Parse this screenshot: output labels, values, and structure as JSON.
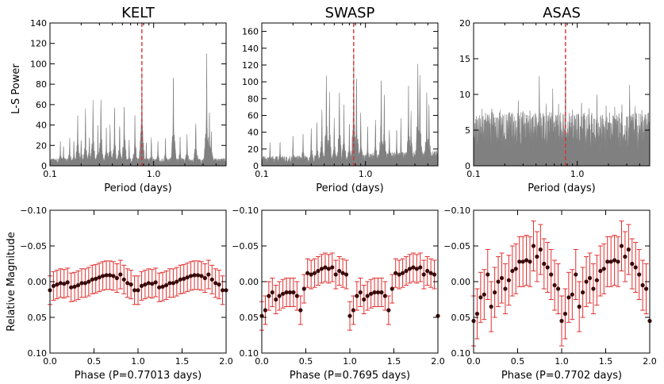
{
  "figure": {
    "ylabel_top": "L-S Power",
    "ylabel_bottom": "Relative Magnitude"
  },
  "chart_data": [
    {
      "id": "kelt-periodogram",
      "type": "area",
      "title": "KELT",
      "xlabel": "Period (days)",
      "ylabel": "L-S Power",
      "xscale": "log",
      "xlim": [
        0.1,
        5.0
      ],
      "ylim": [
        0,
        140
      ],
      "xticks": [
        0.1,
        1.0
      ],
      "xtick_labels": [
        "0.1",
        "1.0"
      ],
      "yticks": [
        0,
        20,
        40,
        60,
        80,
        100,
        120,
        140
      ],
      "fill_color": "#808080",
      "marker_period": 0.77013,
      "marker_color": "#e03030",
      "baseline": 6,
      "peaks": [
        {
          "x": 0.126,
          "y": 25
        },
        {
          "x": 0.135,
          "y": 22
        },
        {
          "x": 0.155,
          "y": 30
        },
        {
          "x": 0.17,
          "y": 28
        },
        {
          "x": 0.185,
          "y": 53
        },
        {
          "x": 0.2,
          "y": 30
        },
        {
          "x": 0.22,
          "y": 58
        },
        {
          "x": 0.24,
          "y": 32
        },
        {
          "x": 0.26,
          "y": 68
        },
        {
          "x": 0.29,
          "y": 40
        },
        {
          "x": 0.31,
          "y": 74
        },
        {
          "x": 0.35,
          "y": 38
        },
        {
          "x": 0.38,
          "y": 42
        },
        {
          "x": 0.42,
          "y": 60
        },
        {
          "x": 0.47,
          "y": 45
        },
        {
          "x": 0.52,
          "y": 68
        },
        {
          "x": 0.58,
          "y": 28
        },
        {
          "x": 0.66,
          "y": 55
        },
        {
          "x": 0.77,
          "y": 107
        },
        {
          "x": 0.85,
          "y": 25
        },
        {
          "x": 0.95,
          "y": 30
        },
        {
          "x": 1.1,
          "y": 25
        },
        {
          "x": 1.3,
          "y": 28
        },
        {
          "x": 1.55,
          "y": 100
        },
        {
          "x": 1.8,
          "y": 30
        },
        {
          "x": 2.1,
          "y": 32
        },
        {
          "x": 2.55,
          "y": 48
        },
        {
          "x": 3.25,
          "y": 115
        },
        {
          "x": 3.45,
          "y": 55
        },
        {
          "x": 3.6,
          "y": 40
        }
      ]
    },
    {
      "id": "swasp-periodogram",
      "type": "area",
      "title": "SWASP",
      "xlabel": "Period (days)",
      "xscale": "log",
      "xlim": [
        0.1,
        5.0
      ],
      "ylim": [
        0,
        170
      ],
      "xticks": [
        0.1,
        1.0
      ],
      "xtick_labels": [
        "0.1",
        "1.0"
      ],
      "yticks": [
        0,
        20,
        40,
        60,
        80,
        100,
        120,
        140,
        160
      ],
      "fill_color": "#808080",
      "marker_period": 0.7695,
      "marker_color": "#e03030",
      "baseline": 10,
      "peaks": [
        {
          "x": 0.12,
          "y": 28
        },
        {
          "x": 0.15,
          "y": 32
        },
        {
          "x": 0.2,
          "y": 38
        },
        {
          "x": 0.25,
          "y": 42
        },
        {
          "x": 0.3,
          "y": 52
        },
        {
          "x": 0.34,
          "y": 60
        },
        {
          "x": 0.38,
          "y": 75
        },
        {
          "x": 0.42,
          "y": 117
        },
        {
          "x": 0.45,
          "y": 90
        },
        {
          "x": 0.5,
          "y": 60
        },
        {
          "x": 0.56,
          "y": 100
        },
        {
          "x": 0.62,
          "y": 75
        },
        {
          "x": 0.7,
          "y": 55
        },
        {
          "x": 0.77,
          "y": 150
        },
        {
          "x": 0.82,
          "y": 120
        },
        {
          "x": 0.9,
          "y": 70
        },
        {
          "x": 1.05,
          "y": 50
        },
        {
          "x": 1.25,
          "y": 60
        },
        {
          "x": 1.42,
          "y": 118
        },
        {
          "x": 1.52,
          "y": 95
        },
        {
          "x": 1.7,
          "y": 50
        },
        {
          "x": 2.0,
          "y": 45
        },
        {
          "x": 2.2,
          "y": 60
        },
        {
          "x": 2.6,
          "y": 100
        },
        {
          "x": 2.75,
          "y": 70
        },
        {
          "x": 3.2,
          "y": 135
        },
        {
          "x": 3.35,
          "y": 120
        },
        {
          "x": 3.9,
          "y": 100
        },
        {
          "x": 4.1,
          "y": 80
        }
      ]
    },
    {
      "id": "asas-periodogram",
      "type": "area",
      "title": "ASAS",
      "xlabel": "Period (days)",
      "xscale": "log",
      "xlim": [
        0.1,
        5.0
      ],
      "ylim": [
        0,
        20
      ],
      "xticks": [
        0.1,
        1.0
      ],
      "xtick_labels": [
        "0.1",
        "1.0"
      ],
      "yticks": [
        0,
        5,
        10,
        15,
        20
      ],
      "fill_color": "#808080",
      "marker_period": 0.7702,
      "marker_color": "#e03030",
      "baseline": 6,
      "peaks": [
        {
          "x": 0.12,
          "y": 8
        },
        {
          "x": 0.15,
          "y": 9
        },
        {
          "x": 0.18,
          "y": 8
        },
        {
          "x": 0.22,
          "y": 9
        },
        {
          "x": 0.27,
          "y": 11
        },
        {
          "x": 0.3,
          "y": 9
        },
        {
          "x": 0.35,
          "y": 9
        },
        {
          "x": 0.43,
          "y": 14.5
        },
        {
          "x": 0.5,
          "y": 10
        },
        {
          "x": 0.58,
          "y": 12
        },
        {
          "x": 0.66,
          "y": 9
        },
        {
          "x": 0.77,
          "y": 15.5
        },
        {
          "x": 0.9,
          "y": 9
        },
        {
          "x": 1.1,
          "y": 10
        },
        {
          "x": 1.3,
          "y": 9
        },
        {
          "x": 1.55,
          "y": 11
        },
        {
          "x": 1.9,
          "y": 9
        },
        {
          "x": 2.3,
          "y": 9
        },
        {
          "x": 2.7,
          "y": 9
        },
        {
          "x": 3.2,
          "y": 13
        },
        {
          "x": 3.6,
          "y": 9
        },
        {
          "x": 4.2,
          "y": 8
        }
      ]
    },
    {
      "id": "kelt-phased",
      "type": "scatter",
      "xlabel": "Phase (P=0.77013 days)",
      "ylabel": "Relative Magnitude",
      "xlim": [
        0.0,
        2.0
      ],
      "ylim": [
        0.1,
        -0.1
      ],
      "xticks": [
        0.0,
        0.5,
        1.0,
        1.5,
        2.0
      ],
      "xtick_labels": [
        "0.0",
        "0.5",
        "1.0",
        "1.5",
        "2.0"
      ],
      "yticks": [
        -0.1,
        -0.05,
        0.0,
        0.05,
        0.1
      ],
      "ytick_labels": [
        "−0.10",
        "−0.05",
        "0.00",
        "0.05",
        "0.10"
      ],
      "point_color": "#3a0a0a",
      "error_color": "#e03030",
      "error": 0.02,
      "phase": [
        0.0,
        0.04,
        0.08,
        0.12,
        0.16,
        0.2,
        0.24,
        0.28,
        0.32,
        0.36,
        0.4,
        0.44,
        0.48,
        0.52,
        0.56,
        0.6,
        0.64,
        0.68,
        0.72,
        0.76,
        0.8,
        0.84,
        0.88,
        0.92,
        0.96
      ],
      "mag": [
        0.012,
        0.006,
        0.004,
        0.002,
        0.003,
        0.001,
        0.008,
        0.007,
        0.005,
        0.002,
        0.002,
        0.0,
        -0.003,
        -0.004,
        -0.006,
        -0.008,
        -0.009,
        -0.009,
        -0.008,
        -0.005,
        -0.01,
        -0.003,
        0.002,
        0.004,
        0.012
      ]
    },
    {
      "id": "swasp-phased",
      "type": "scatter",
      "xlabel": "Phase (P=0.7695 days)",
      "xlim": [
        0.0,
        2.0
      ],
      "ylim": [
        0.1,
        -0.1
      ],
      "xticks": [
        0.0,
        0.5,
        1.0,
        1.5,
        2.0
      ],
      "xtick_labels": [
        "0.0",
        "0.5",
        "1.0",
        "1.5",
        "2.0"
      ],
      "yticks": [
        -0.1,
        -0.05,
        0.0,
        0.05,
        0.1
      ],
      "ytick_labels": [
        "−0.10",
        "−0.05",
        "0.00",
        "0.05",
        "0.10"
      ],
      "point_color": "#3a0a0a",
      "error_color": "#e03030",
      "error": 0.02,
      "phase": [
        0.0,
        0.04,
        0.08,
        0.12,
        0.16,
        0.2,
        0.24,
        0.28,
        0.32,
        0.36,
        0.4,
        0.44,
        0.48,
        0.52,
        0.56,
        0.6,
        0.64,
        0.68,
        0.72,
        0.76,
        0.8,
        0.84,
        0.88,
        0.92,
        0.96
      ],
      "mag": [
        0.048,
        0.04,
        0.02,
        0.015,
        0.025,
        0.02,
        0.017,
        0.015,
        0.015,
        0.015,
        0.02,
        0.04,
        0.01,
        -0.012,
        -0.01,
        -0.012,
        -0.015,
        -0.018,
        -0.02,
        -0.018,
        -0.02,
        -0.01,
        -0.015,
        -0.012,
        -0.01
      ]
    },
    {
      "id": "asas-phased",
      "type": "scatter",
      "xlabel": "Phase (P=0.7702 days)",
      "xlim": [
        0.0,
        2.0
      ],
      "ylim": [
        0.1,
        -0.1
      ],
      "xticks": [
        0.0,
        0.5,
        1.0,
        1.5,
        2.0
      ],
      "xtick_labels": [
        "0.0",
        "0.5",
        "1.0",
        "1.5",
        "2.0"
      ],
      "yticks": [
        -0.1,
        -0.05,
        0.0,
        0.05,
        0.1
      ],
      "ytick_labels": [
        "−0.10",
        "−0.05",
        "0.00",
        "0.05",
        "0.10"
      ],
      "point_color": "#3a0a0a",
      "error_color": "#e03030",
      "error": 0.035,
      "phase": [
        0.0,
        0.04,
        0.08,
        0.12,
        0.16,
        0.2,
        0.24,
        0.28,
        0.32,
        0.36,
        0.4,
        0.44,
        0.48,
        0.52,
        0.56,
        0.6,
        0.64,
        0.68,
        0.72,
        0.76,
        0.8,
        0.84,
        0.88,
        0.92,
        0.96
      ],
      "mag": [
        0.055,
        0.045,
        0.022,
        0.018,
        -0.01,
        0.035,
        0.015,
        0.0,
        -0.005,
        0.01,
        -0.002,
        -0.015,
        -0.018,
        -0.028,
        -0.028,
        -0.03,
        -0.028,
        -0.05,
        -0.035,
        -0.045,
        -0.025,
        -0.02,
        -0.01,
        0.005,
        0.01
      ]
    }
  ]
}
